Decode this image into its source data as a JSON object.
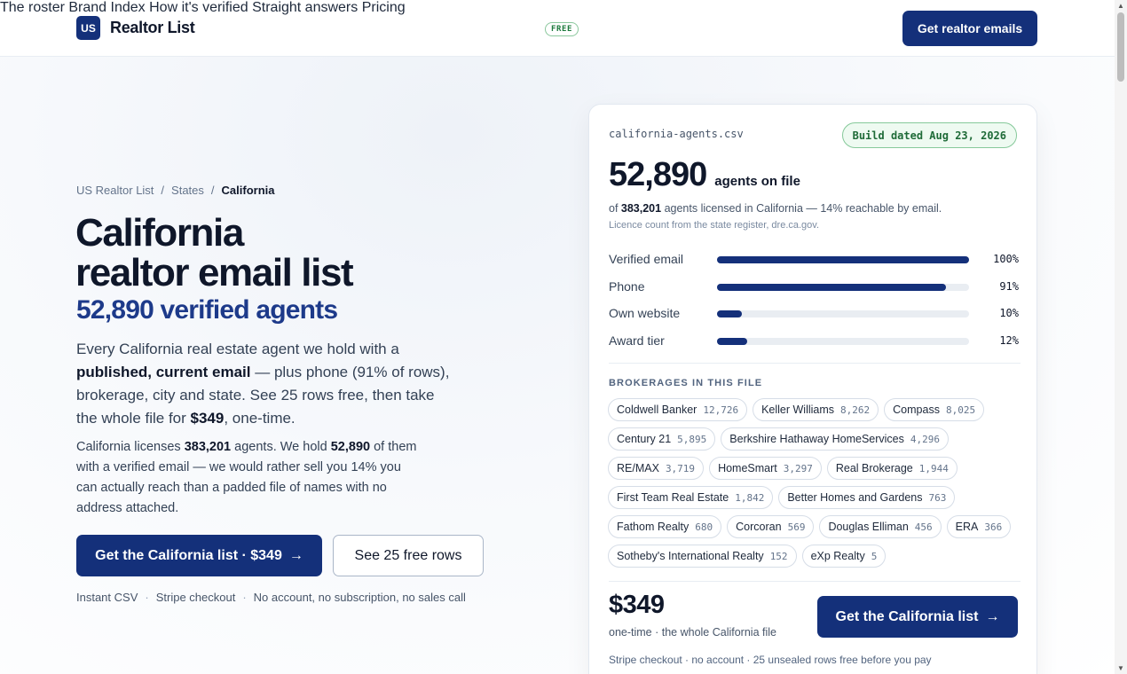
{
  "header": {
    "logo_mark": "US",
    "logo_text": "Realtor List",
    "nav": [
      {
        "label": "The roster"
      },
      {
        "label": "Brand Index"
      },
      {
        "label": "How it's verified"
      },
      {
        "label": "Straight answers"
      },
      {
        "label": "Pricing"
      }
    ],
    "free_badge": "FREE",
    "cta": "Get realtor emails"
  },
  "breadcrumb": {
    "items": [
      "US Realtor List",
      "States",
      "California"
    ],
    "sep": "/"
  },
  "hero": {
    "title_line1": "California",
    "title_line2": "realtor email list",
    "subtitle": "52,890 verified agents",
    "lede_a": "Every California real estate agent we hold with a ",
    "lede_b": "published, current email",
    "lede_c": " — plus phone (91% of rows), brokerage, city and state. See 25 rows free, then take the whole file for ",
    "lede_d": "$349",
    "lede_e": ", one-time.",
    "p2_a": "California licenses ",
    "p2_b": "383,201",
    "p2_c": " agents. We hold ",
    "p2_d": "52,890",
    "p2_e": " of them with a verified email — we would rather sell you 14% you can actually reach than a padded file of names with no address attached.",
    "primary_button": "Get the California list · $349",
    "secondary_button": "See 25 free rows",
    "arrow": "→",
    "footnote": [
      "Instant CSV",
      "Stripe checkout",
      "No account, no subscription, no sales call"
    ],
    "footnote_sep": "·"
  },
  "card": {
    "filename": "california-agents.csv",
    "build_badge": "Build dated Aug 23, 2026",
    "count": "52,890",
    "count_label": "agents on file",
    "licensed_a": "of ",
    "licensed_b": "383,201",
    "licensed_c": " agents licensed in California — 14% reachable by email.",
    "source": "Licence count from the state register, dre.ca.gov.",
    "bars": [
      {
        "label": "Verified email",
        "pct": "100%",
        "value": 1.0
      },
      {
        "label": "Phone",
        "pct": "91%",
        "value": 0.91
      },
      {
        "label": "Own website",
        "pct": "10%",
        "value": 0.1
      },
      {
        "label": "Award tier",
        "pct": "12%",
        "value": 0.12
      }
    ],
    "brokerages_heading": "BROKERAGES IN THIS FILE",
    "brokerages": [
      {
        "name": "Coldwell Banker",
        "count": "12,726"
      },
      {
        "name": "Keller Williams",
        "count": "8,262"
      },
      {
        "name": "Compass",
        "count": "8,025"
      },
      {
        "name": "Century 21",
        "count": "5,895"
      },
      {
        "name": "Berkshire Hathaway HomeServices",
        "count": "4,296"
      },
      {
        "name": "RE/MAX",
        "count": "3,719"
      },
      {
        "name": "HomeSmart",
        "count": "3,297"
      },
      {
        "name": "Real Brokerage",
        "count": "1,944"
      },
      {
        "name": "First Team Real Estate",
        "count": "1,842"
      },
      {
        "name": "Better Homes and Gardens",
        "count": "763"
      },
      {
        "name": "Fathom Realty",
        "count": "680"
      },
      {
        "name": "Corcoran",
        "count": "569"
      },
      {
        "name": "Douglas Elliman",
        "count": "456"
      },
      {
        "name": "ERA",
        "count": "366"
      },
      {
        "name": "Sotheby's International Realty",
        "count": "152"
      },
      {
        "name": "eXp Realty",
        "count": "5"
      }
    ],
    "price": "$349",
    "price_sub": "one-time · the whole California file",
    "button": "Get the California list",
    "arrow": "→",
    "foot": "Stripe checkout · no account · 25 unsealed rows free before you pay"
  },
  "colors": {
    "brand": "#14307a",
    "badge_green": "#1f6b38"
  }
}
